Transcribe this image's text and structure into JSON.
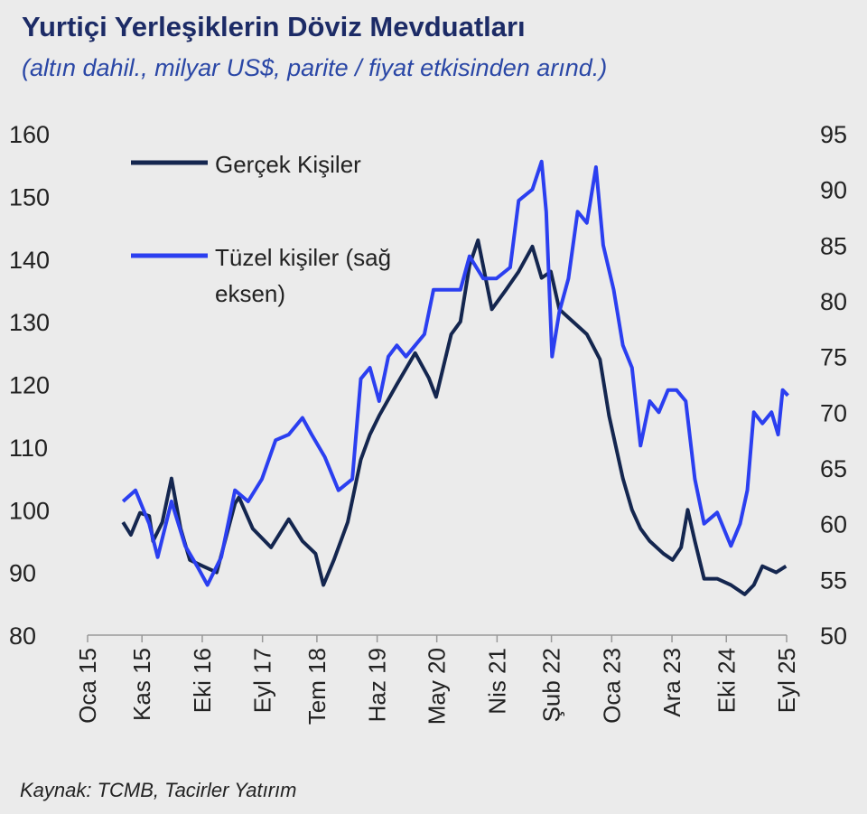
{
  "chart_data": {
    "type": "line",
    "title": "Yurtiçi Yerleşiklerin Döviz Mevduatları",
    "subtitle": "(altın dahil., milyar US$, parite / fiyat etkisinden arınd.)",
    "source": "Kaynak: TCMB, Tacirler Yatırım",
    "x_unit": "decimal year",
    "xlim": [
      2015.0,
      2025.67
    ],
    "x_ticks": [
      {
        "value": 2015.0,
        "label": "Oca 15"
      },
      {
        "value": 2015.83,
        "label": "Kas 15"
      },
      {
        "value": 2016.75,
        "label": "Eki 16"
      },
      {
        "value": 2017.67,
        "label": "Eyl 17"
      },
      {
        "value": 2018.5,
        "label": "Tem 18"
      },
      {
        "value": 2019.42,
        "label": "Haz 19"
      },
      {
        "value": 2020.33,
        "label": "May 20"
      },
      {
        "value": 2021.25,
        "label": "Nis 21"
      },
      {
        "value": 2022.08,
        "label": "Şub 22"
      },
      {
        "value": 2023.0,
        "label": "Oca 23"
      },
      {
        "value": 2023.92,
        "label": "Ara 23"
      },
      {
        "value": 2024.75,
        "label": "Eki 24"
      },
      {
        "value": 2025.67,
        "label": "Eyl 25"
      }
    ],
    "y_left": {
      "ylim": [
        80,
        160
      ],
      "ticks": [
        "160",
        "150",
        "140",
        "130",
        "120",
        "110",
        "100",
        "90",
        "80"
      ]
    },
    "y_right": {
      "ylim": [
        50,
        95
      ],
      "ticks": [
        "95",
        "90",
        "85",
        "80",
        "75",
        "70",
        "65",
        "60",
        "55",
        "50"
      ]
    },
    "grid": false,
    "legend": {
      "placement": "top-left",
      "entries": [
        "Gerçek Kişiler",
        "Tüzel kişiler (sağ",
        "eksen)"
      ]
    },
    "series": [
      {
        "name": "Gerçek Kişiler",
        "axis": "left",
        "color": "#14264f",
        "x": [
          2015.54,
          2015.66,
          2015.8,
          2015.94,
          2016.0,
          2016.14,
          2016.28,
          2016.42,
          2016.56,
          2016.76,
          2016.97,
          2017.25,
          2017.31,
          2017.52,
          2017.8,
          2018.07,
          2018.28,
          2018.48,
          2018.6,
          2018.76,
          2018.97,
          2019.17,
          2019.31,
          2019.45,
          2019.72,
          2020.0,
          2020.21,
          2020.32,
          2020.55,
          2020.69,
          2020.83,
          2020.96,
          2021.17,
          2021.38,
          2021.58,
          2021.79,
          2021.93,
          2022.07,
          2022.2,
          2022.41,
          2022.62,
          2022.82,
          2022.96,
          2023.17,
          2023.31,
          2023.44,
          2023.58,
          2023.79,
          2023.93,
          2024.06,
          2024.16,
          2024.27,
          2024.41,
          2024.61,
          2024.82,
          2025.03,
          2025.17,
          2025.3,
          2025.51,
          2025.66
        ],
        "y": [
          98,
          96,
          99.5,
          99,
          95,
          98,
          105,
          97,
          92,
          91,
          90,
          101,
          102,
          97,
          94,
          98.5,
          95,
          93,
          88,
          92,
          98,
          108,
          112,
          115,
          120,
          125,
          121,
          118,
          128,
          130,
          139,
          143,
          132,
          135,
          138,
          142,
          137,
          138,
          132,
          130,
          128,
          124,
          115,
          105,
          100,
          97,
          95,
          93,
          92,
          94,
          100,
          95,
          89,
          89,
          88,
          86.5,
          88,
          91,
          90,
          91
        ]
      },
      {
        "name": "Tüzel kişiler (sağ eksen)",
        "axis": "right",
        "color": "#2b3ff0",
        "x": [
          2015.54,
          2015.73,
          2015.94,
          2016.07,
          2016.28,
          2016.49,
          2016.69,
          2016.83,
          2017.04,
          2017.25,
          2017.45,
          2017.66,
          2017.87,
          2018.07,
          2018.28,
          2018.42,
          2018.62,
          2018.83,
          2019.04,
          2019.17,
          2019.31,
          2019.45,
          2019.59,
          2019.72,
          2019.86,
          2020.0,
          2020.14,
          2020.28,
          2020.48,
          2020.69,
          2020.83,
          2021.04,
          2021.24,
          2021.45,
          2021.58,
          2021.79,
          2021.93,
          2022.0,
          2022.09,
          2022.2,
          2022.34,
          2022.48,
          2022.62,
          2022.76,
          2022.87,
          2023.03,
          2023.17,
          2023.31,
          2023.44,
          2023.58,
          2023.72,
          2023.86,
          2023.99,
          2024.13,
          2024.27,
          2024.41,
          2024.61,
          2024.82,
          2024.96,
          2025.07,
          2025.17,
          2025.3,
          2025.44,
          2025.54,
          2025.61,
          2025.69
        ],
        "y": [
          62,
          63,
          60,
          57,
          62,
          58,
          56,
          54.5,
          57,
          63,
          62,
          64,
          67.5,
          68,
          69.5,
          68,
          66,
          63,
          64,
          73,
          74,
          71,
          75,
          76,
          75,
          76,
          77,
          81,
          81,
          81,
          84,
          82,
          82,
          83,
          89,
          90,
          92.5,
          88,
          75,
          79,
          82,
          88,
          87,
          92,
          85,
          81,
          76,
          74,
          67,
          71,
          70,
          72,
          72,
          71,
          64,
          60,
          61,
          58,
          60,
          63,
          70,
          69,
          70,
          68,
          72,
          71.5
        ]
      }
    ]
  }
}
